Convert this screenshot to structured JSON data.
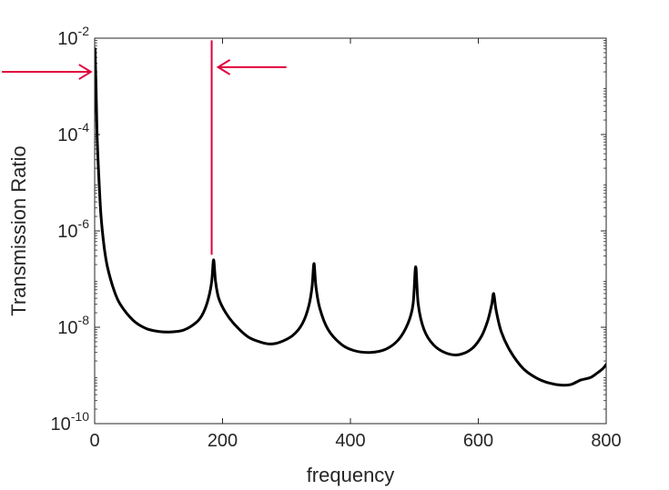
{
  "chart_data": {
    "type": "line",
    "title": "",
    "xlabel": "frequency",
    "ylabel": "Transmission Ratio",
    "xlim": [
      0,
      800
    ],
    "ylim": [
      1e-10,
      0.01
    ],
    "yscale": "log",
    "grid": false,
    "legend": "none",
    "x_ticks": [
      0,
      200,
      400,
      600,
      800
    ],
    "x_tick_labels": [
      "0",
      "200",
      "400",
      "600",
      "800"
    ],
    "y_ticks": [
      1e-10,
      1e-08,
      1e-06,
      0.0001,
      0.01
    ],
    "y_tick_labels": [
      {
        "base": "10",
        "exp": "-10"
      },
      {
        "base": "10",
        "exp": "-8"
      },
      {
        "base": "10",
        "exp": "-6"
      },
      {
        "base": "10",
        "exp": "-4"
      },
      {
        "base": "10",
        "exp": "-2"
      }
    ],
    "series": [
      {
        "color": "#000000",
        "points": [
          [
            0.5,
            0.006
          ],
          [
            2,
            0.0012
          ],
          [
            4,
            8e-05
          ],
          [
            7,
            1e-05
          ],
          [
            10,
            2e-06
          ],
          [
            15,
            4.5e-07
          ],
          [
            20,
            1.8e-07
          ],
          [
            30,
            6e-08
          ],
          [
            40,
            3e-08
          ],
          [
            60,
            1.4e-08
          ],
          [
            80,
            9.5e-09
          ],
          [
            100,
            8.2e-09
          ],
          [
            120,
            8e-09
          ],
          [
            140,
            8.8e-09
          ],
          [
            160,
            1.3e-08
          ],
          [
            170,
            2e-08
          ],
          [
            178,
            4e-08
          ],
          [
            183,
            9e-08
          ],
          [
            186,
            2.5e-07
          ],
          [
            189,
            9e-08
          ],
          [
            194,
            4e-08
          ],
          [
            205,
            2e-08
          ],
          [
            220,
            1.1e-08
          ],
          [
            240,
            6.3e-09
          ],
          [
            260,
            4.9e-09
          ],
          [
            275,
            4.5e-09
          ],
          [
            290,
            4.9e-09
          ],
          [
            310,
            6.8e-09
          ],
          [
            325,
            1.2e-08
          ],
          [
            335,
            2.8e-08
          ],
          [
            340,
            7e-08
          ],
          [
            343,
            2.1e-07
          ],
          [
            346,
            7e-08
          ],
          [
            352,
            2.5e-08
          ],
          [
            365,
            9e-09
          ],
          [
            385,
            4.5e-09
          ],
          [
            405,
            3.3e-09
          ],
          [
            430,
            3e-09
          ],
          [
            455,
            3.5e-09
          ],
          [
            475,
            5.5e-09
          ],
          [
            490,
            1.2e-08
          ],
          [
            498,
            3e-08
          ],
          [
            502,
            1.8e-07
          ],
          [
            506,
            3e-08
          ],
          [
            515,
            9e-09
          ],
          [
            530,
            4.3e-09
          ],
          [
            550,
            2.9e-09
          ],
          [
            570,
            2.7e-09
          ],
          [
            590,
            3.6e-09
          ],
          [
            605,
            6.5e-09
          ],
          [
            615,
            1.4e-08
          ],
          [
            621,
            3e-08
          ],
          [
            624,
            5e-08
          ],
          [
            628,
            2.2e-08
          ],
          [
            636,
            8e-09
          ],
          [
            650,
            3.2e-09
          ],
          [
            670,
            1.4e-09
          ],
          [
            690,
            9e-10
          ],
          [
            710,
            7e-10
          ],
          [
            730,
            6.3e-10
          ],
          [
            745,
            6.5e-10
          ],
          [
            760,
            8e-10
          ],
          [
            775,
            9e-10
          ],
          [
            785,
            1.1e-09
          ],
          [
            795,
            1.4e-09
          ],
          [
            800,
            1.7e-09
          ]
        ]
      }
    ],
    "annotations": [
      {
        "type": "vertical-line",
        "x": 183,
        "y_from": 3.2e-07,
        "y_to": 0.009,
        "color": "#e0003c"
      },
      {
        "type": "arrow",
        "direction": "right",
        "x_from": -145,
        "x_to": -6,
        "y": 0.002,
        "color": "#e0003c"
      },
      {
        "type": "arrow",
        "direction": "left",
        "x_from": 300,
        "x_to": 193,
        "y": 0.0025,
        "color": "#e0003c"
      }
    ]
  }
}
